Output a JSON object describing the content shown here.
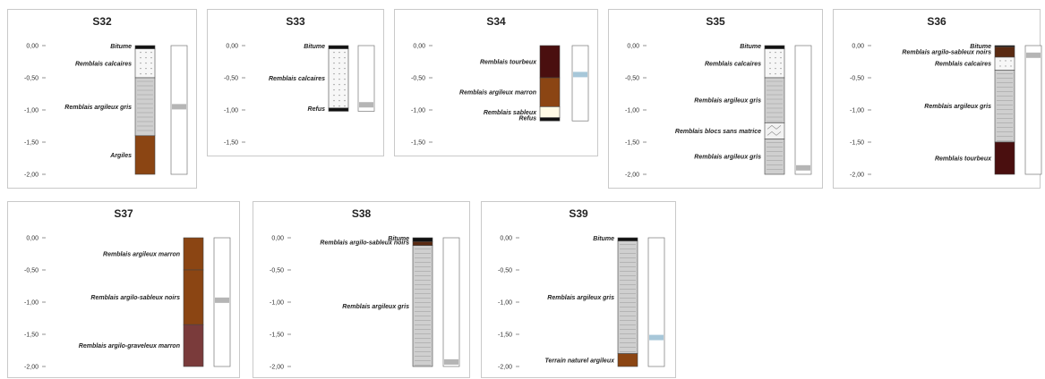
{
  "colors": {
    "bitume": "#111111",
    "remblais_calcaires": "#f7f7f7",
    "remblais_argileux_gris": "#cfcfcf",
    "argiles": "#8b4513",
    "refus": "#111111",
    "remblais_tourbeux": "#4a0f0f",
    "remblais_argileux_marron": "#8b4513",
    "remblais_sableux": "#fffbe6",
    "remblais_blocs": "#f2f2f2",
    "remblais_argilo_sableux_noirs": "#5a2a12",
    "remblais_argilo_graveleux_marron": "#7a3b3b",
    "terrain_naturel_argileux": "#8b4513",
    "water_marker": "#b5b5b5",
    "water_marker_blue": "#a7c7d9"
  },
  "depth_ticks": [
    "0,00",
    "-0,50",
    "-1,00",
    "-1,50",
    "-2,00"
  ],
  "logs": [
    {
      "id": "S32",
      "max_depth": 2.0,
      "water_level": 0.95,
      "water_marker_color": "water_marker",
      "layers": [
        {
          "name": "Bitume",
          "top": 0.0,
          "bottom": 0.05,
          "fill": "bitume"
        },
        {
          "name": "Remblais calcaires",
          "top": 0.05,
          "bottom": 0.5,
          "fill": "remblais_calcaires",
          "pattern": "dots"
        },
        {
          "name": "Remblais argileux gris",
          "top": 0.5,
          "bottom": 1.4,
          "fill": "remblais_argileux_gris",
          "pattern": "lines"
        },
        {
          "name": "Argiles",
          "top": 1.4,
          "bottom": 2.0,
          "fill": "argiles"
        }
      ]
    },
    {
      "id": "S33",
      "max_depth": 1.5,
      "water_level": 0.92,
      "water_marker_color": "water_marker",
      "layers": [
        {
          "name": "Bitume",
          "top": 0.0,
          "bottom": 0.05,
          "fill": "bitume"
        },
        {
          "name": "Remblais calcaires",
          "top": 0.05,
          "bottom": 0.97,
          "fill": "remblais_calcaires",
          "pattern": "dots"
        },
        {
          "name": "Refus",
          "top": 0.97,
          "bottom": 1.02,
          "fill": "refus"
        }
      ]
    },
    {
      "id": "S34",
      "max_depth": 1.5,
      "water_level": 0.45,
      "water_marker_color": "water_marker_blue",
      "layers": [
        {
          "name": "Remblais tourbeux",
          "top": 0.0,
          "bottom": 0.5,
          "fill": "remblais_tourbeux"
        },
        {
          "name": "Remblais argileux marron",
          "top": 0.5,
          "bottom": 0.95,
          "fill": "remblais_argileux_marron"
        },
        {
          "name": "Remblais sableux",
          "top": 0.95,
          "bottom": 1.12,
          "fill": "remblais_sableux"
        },
        {
          "name": "Refus",
          "top": 1.12,
          "bottom": 1.17,
          "fill": "refus"
        }
      ]
    },
    {
      "id": "S35",
      "max_depth": 2.0,
      "water_level": 1.9,
      "water_marker_color": "water_marker",
      "layers": [
        {
          "name": "Bitume",
          "top": 0.0,
          "bottom": 0.05,
          "fill": "bitume"
        },
        {
          "name": "Remblais calcaires",
          "top": 0.05,
          "bottom": 0.5,
          "fill": "remblais_calcaires",
          "pattern": "dots"
        },
        {
          "name": "Remblais argileux gris",
          "top": 0.5,
          "bottom": 1.2,
          "fill": "remblais_argileux_gris",
          "pattern": "lines"
        },
        {
          "name": "Remblais blocs sans matrice",
          "top": 1.2,
          "bottom": 1.45,
          "fill": "remblais_blocs",
          "pattern": "blocks"
        },
        {
          "name": "Remblais argileux gris",
          "top": 1.45,
          "bottom": 2.0,
          "fill": "remblais_argileux_gris",
          "pattern": "lines"
        }
      ]
    },
    {
      "id": "S36",
      "max_depth": 2.0,
      "water_level": 0.15,
      "water_marker_color": "water_marker",
      "layers": [
        {
          "name": "Bitume",
          "top": 0.0,
          "bottom": 0.02,
          "fill": "bitume"
        },
        {
          "name": "Remblais argilo-sableux noirs",
          "top": 0.02,
          "bottom": 0.18,
          "fill": "remblais_argilo_sableux_noirs"
        },
        {
          "name": "Remblais calcaires",
          "top": 0.18,
          "bottom": 0.38,
          "fill": "remblais_calcaires",
          "pattern": "dots"
        },
        {
          "name": "Remblais argileux gris",
          "top": 0.38,
          "bottom": 1.5,
          "fill": "remblais_argileux_gris",
          "pattern": "lines"
        },
        {
          "name": "Remblais tourbeux",
          "top": 1.5,
          "bottom": 2.0,
          "fill": "remblais_tourbeux"
        }
      ]
    },
    {
      "id": "S37",
      "max_depth": 2.0,
      "water_level": 0.97,
      "water_marker_color": "water_marker",
      "layers": [
        {
          "name": "Remblais argileux marron",
          "top": 0.0,
          "bottom": 0.5,
          "fill": "remblais_argileux_marron"
        },
        {
          "name": "Remblais argilo-sableux noirs",
          "top": 0.5,
          "bottom": 1.35,
          "fill": "remblais_argileux_marron"
        },
        {
          "name": "Remblais argilo-graveleux marron",
          "top": 1.35,
          "bottom": 2.0,
          "fill": "remblais_argilo_graveleux_marron"
        }
      ]
    },
    {
      "id": "S38",
      "max_depth": 2.0,
      "water_level": 1.93,
      "water_marker_color": "water_marker",
      "layers": [
        {
          "name": "Bitume",
          "top": 0.0,
          "bottom": 0.06,
          "fill": "bitume"
        },
        {
          "name": "Remblais argilo-sableux noirs",
          "top": 0.06,
          "bottom": 0.12,
          "fill": "remblais_argilo_sableux_noirs"
        },
        {
          "name": "Remblais argileux gris",
          "top": 0.12,
          "bottom": 2.0,
          "fill": "remblais_argileux_gris",
          "pattern": "lines"
        }
      ]
    },
    {
      "id": "S39",
      "max_depth": 2.0,
      "water_level": 1.55,
      "water_marker_color": "water_marker_blue",
      "layers": [
        {
          "name": "Bitume",
          "top": 0.0,
          "bottom": 0.05,
          "fill": "bitume"
        },
        {
          "name": "Remblais argileux gris",
          "top": 0.05,
          "bottom": 1.8,
          "fill": "remblais_argileux_gris",
          "pattern": "lines"
        },
        {
          "name": "Terrain naturel argileux",
          "top": 1.8,
          "bottom": 2.0,
          "fill": "terrain_naturel_argileux"
        }
      ]
    }
  ]
}
